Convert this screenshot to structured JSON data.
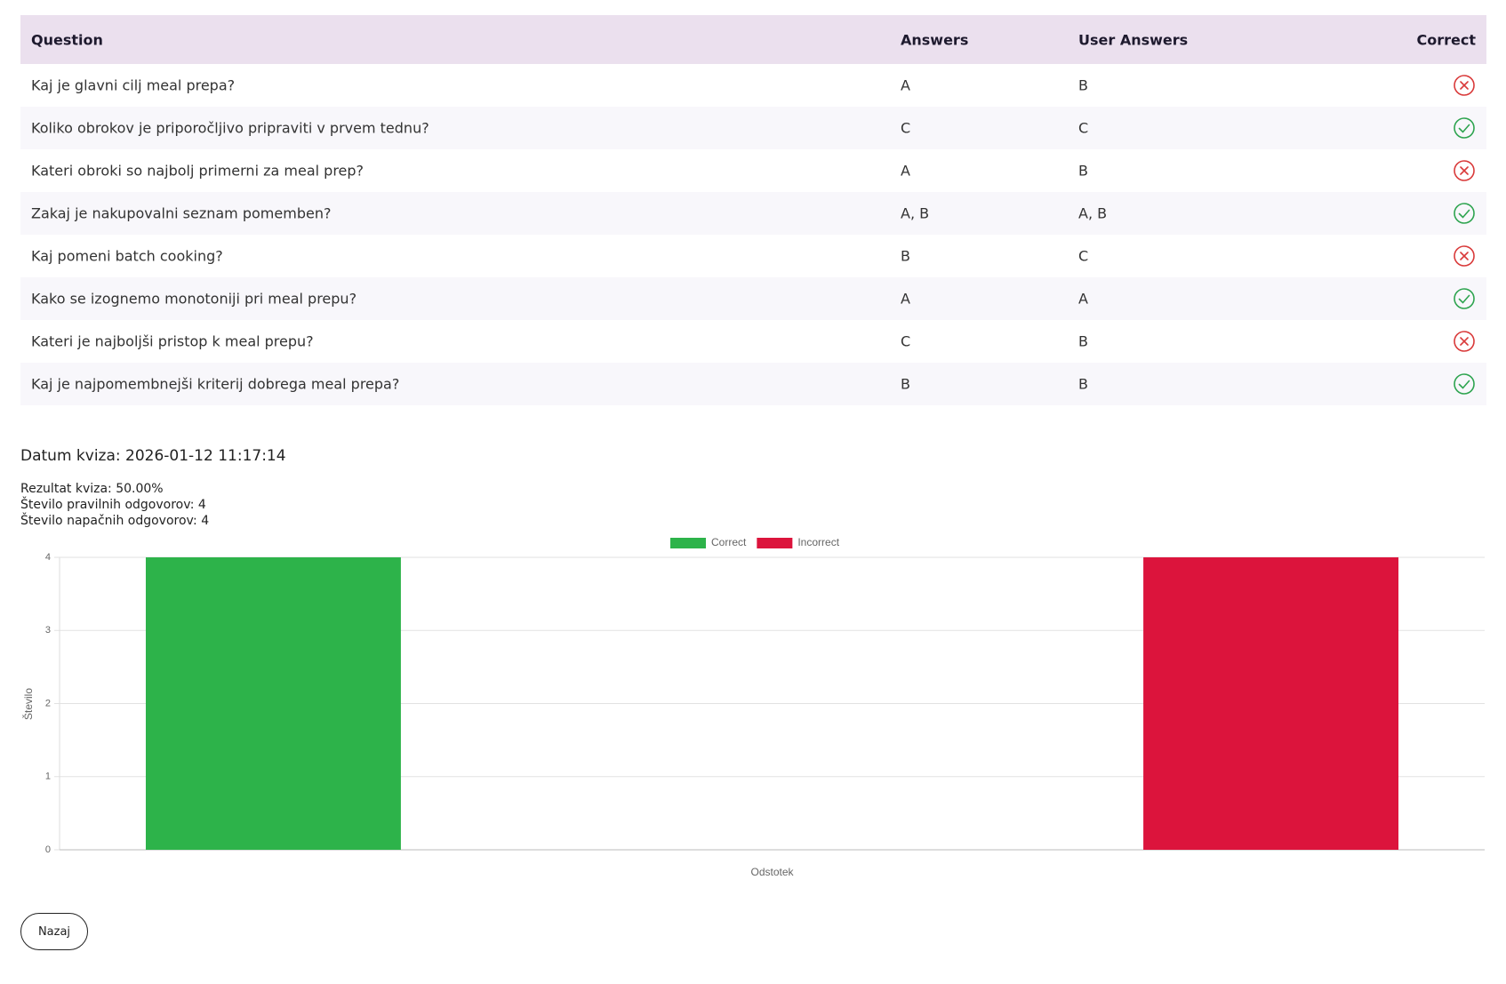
{
  "table": {
    "headers": [
      "Question",
      "Answers",
      "User Answers",
      "Correct"
    ],
    "rows": [
      {
        "question": "Kaj je glavni cilj meal prepa?",
        "answers": "A",
        "user_answers": "B",
        "correct": false
      },
      {
        "question": "Koliko obrokov je priporočljivo pripraviti v prvem tednu?",
        "answers": "C",
        "user_answers": "C",
        "correct": true
      },
      {
        "question": "Kateri obroki so najbolj primerni za meal prep?",
        "answers": "A",
        "user_answers": "B",
        "correct": false
      },
      {
        "question": "Zakaj je nakupovalni seznam pomemben?",
        "answers": "A, B",
        "user_answers": "A, B",
        "correct": true
      },
      {
        "question": "Kaj pomeni batch cooking?",
        "answers": "B",
        "user_answers": "C",
        "correct": false
      },
      {
        "question": "Kako se izognemo monotoniji pri meal prepu?",
        "answers": "A",
        "user_answers": "A",
        "correct": true
      },
      {
        "question": "Kateri je najboljši pristop k meal prepu?",
        "answers": "C",
        "user_answers": "B",
        "correct": false
      },
      {
        "question": "Kaj je najpomembnejši kriterij dobrega meal prepa?",
        "answers": "B",
        "user_answers": "B",
        "correct": true
      }
    ]
  },
  "summary": {
    "date": "Datum kviza: 2026-01-12 11:17:14",
    "result": "Rezultat kviza: 50.00%",
    "correct_count": "Število pravilnih odgovorov: 4",
    "incorrect_count": "Število napačnih odgovorov: 4"
  },
  "chart_data": {
    "type": "bar",
    "categories": [
      "Odstotek"
    ],
    "ylabel": "Število",
    "series": [
      {
        "name": "Correct",
        "color": "#2db34a",
        "values": [
          4
        ]
      },
      {
        "name": "Incorrect",
        "color": "#dc143c",
        "values": [
          4
        ]
      }
    ],
    "ylim": [
      0,
      4
    ],
    "yticks": [
      0,
      1,
      2,
      3,
      4
    ],
    "grid": true,
    "legend": "top"
  },
  "button": "Nazaj"
}
